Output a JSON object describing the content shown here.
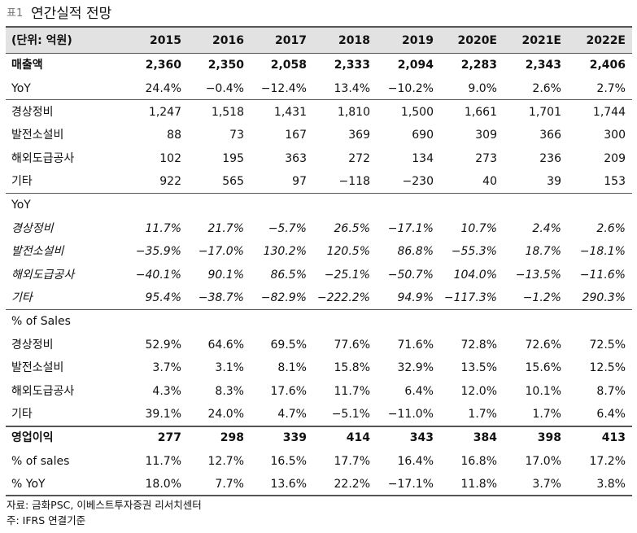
{
  "title": {
    "tag": "표1",
    "text": "연간실적 전망"
  },
  "table": {
    "header": [
      "(단위: 억원)",
      "2015",
      "2016",
      "2017",
      "2018",
      "2019",
      "2020E",
      "2021E",
      "2022E"
    ],
    "sections": [
      {
        "rows": [
          [
            "매출액",
            "2,360",
            "2,350",
            "2,058",
            "2,333",
            "2,094",
            "2,283",
            "2,343",
            "2,406"
          ],
          [
            "YoY",
            "24.4%",
            "−0.4%",
            "−12.4%",
            "13.4%",
            "−10.2%",
            "9.0%",
            "2.6%",
            "2.7%"
          ]
        ]
      },
      {
        "rows": [
          [
            "경상정비",
            "1,247",
            "1,518",
            "1,431",
            "1,810",
            "1,500",
            "1,661",
            "1,701",
            "1,744"
          ],
          [
            "발전소설비",
            "88",
            "73",
            "167",
            "369",
            "690",
            "309",
            "366",
            "300"
          ],
          [
            "해외도급공사",
            "102",
            "195",
            "363",
            "272",
            "134",
            "273",
            "236",
            "209"
          ],
          [
            "기타",
            "922",
            "565",
            "97",
            "−118",
            "−230",
            "40",
            "39",
            "153"
          ]
        ]
      },
      {
        "rows": [
          [
            "YoY"
          ],
          [
            "경상정비",
            "11.7%",
            "21.7%",
            "−5.7%",
            "26.5%",
            "−17.1%",
            "10.7%",
            "2.4%",
            "2.6%"
          ],
          [
            "발전소설비",
            "−35.9%",
            "−17.0%",
            "130.2%",
            "120.5%",
            "86.8%",
            "−55.3%",
            "18.7%",
            "−18.1%"
          ],
          [
            "해외도급공사",
            "−40.1%",
            "90.1%",
            "86.5%",
            "−25.1%",
            "−50.7%",
            "104.0%",
            "−13.5%",
            "−11.6%"
          ],
          [
            "기타",
            "95.4%",
            "−38.7%",
            "−82.9%",
            "−222.2%",
            "94.9%",
            "−117.3%",
            "−1.2%",
            "290.3%"
          ]
        ]
      },
      {
        "rows": [
          [
            "% of Sales"
          ],
          [
            "경상정비",
            "52.9%",
            "64.6%",
            "69.5%",
            "77.6%",
            "71.6%",
            "72.8%",
            "72.6%",
            "72.5%"
          ],
          [
            "발전소설비",
            "3.7%",
            "3.1%",
            "8.1%",
            "15.8%",
            "32.9%",
            "13.5%",
            "15.6%",
            "12.5%"
          ],
          [
            "해외도급공사",
            "4.3%",
            "8.3%",
            "17.6%",
            "11.7%",
            "6.4%",
            "12.0%",
            "10.1%",
            "8.7%"
          ],
          [
            "기타",
            "39.1%",
            "24.0%",
            "4.7%",
            "−5.1%",
            "−11.0%",
            "1.7%",
            "1.7%",
            "6.4%"
          ]
        ]
      },
      {
        "rows": [
          [
            "영업이익",
            "277",
            "298",
            "339",
            "414",
            "343",
            "384",
            "398",
            "413"
          ],
          [
            "% of sales",
            "11.7%",
            "12.7%",
            "16.5%",
            "17.7%",
            "16.4%",
            "16.8%",
            "17.0%",
            "17.2%"
          ],
          [
            "% YoY",
            "18.0%",
            "7.7%",
            "13.6%",
            "22.2%",
            "−17.1%",
            "11.8%",
            "3.7%",
            "3.8%"
          ]
        ]
      }
    ]
  },
  "notes": [
    "자료: 금화PSC, 이베스트투자증권 리서치센터",
    "주: IFRS 연결기준"
  ]
}
